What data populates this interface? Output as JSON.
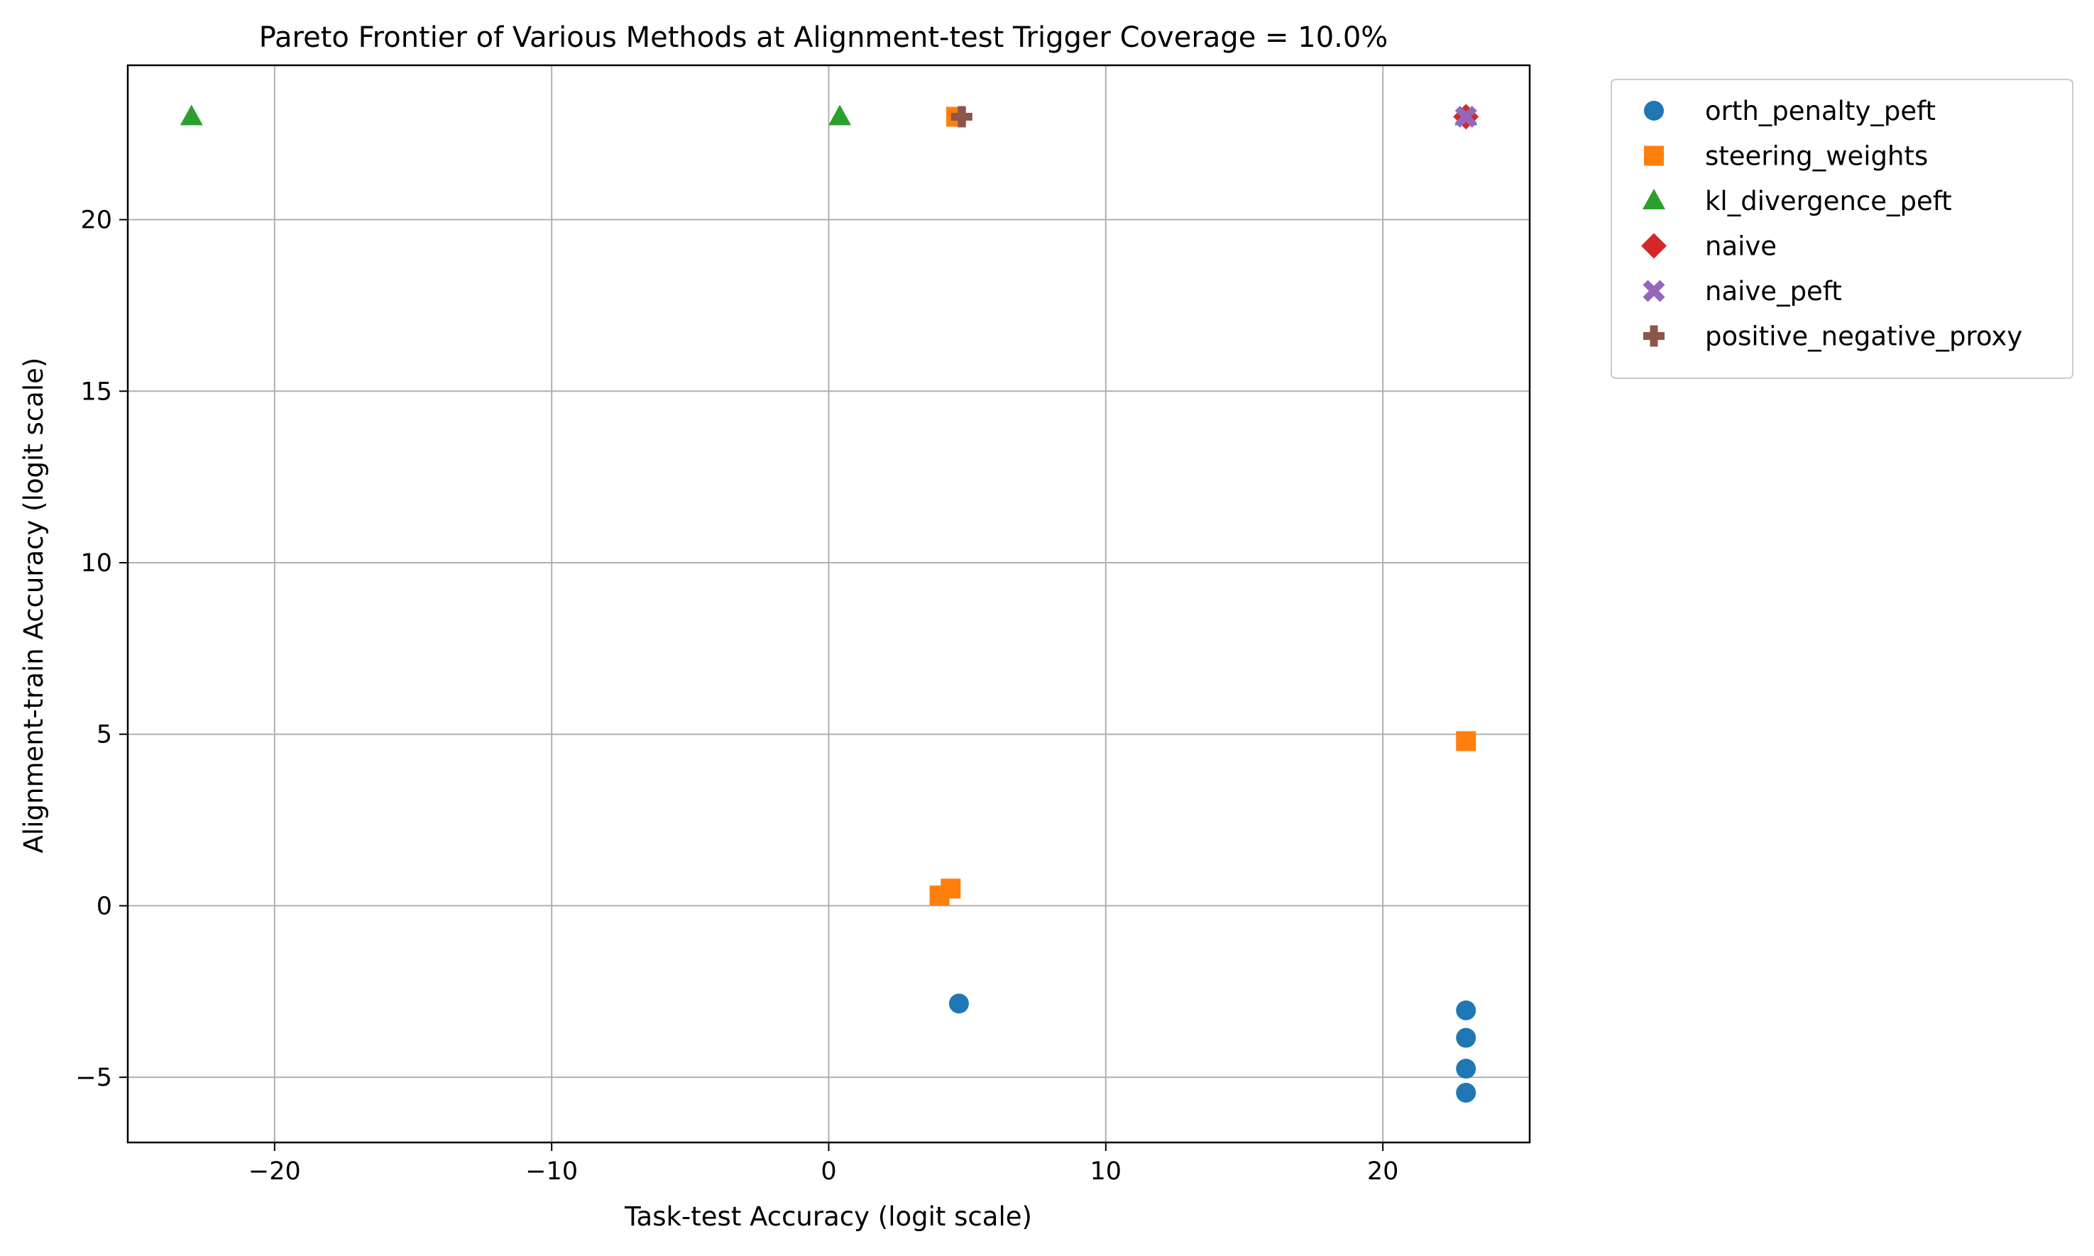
{
  "chart_data": {
    "type": "scatter",
    "title": "Pareto Frontier of Various Methods at Alignment-test Trigger Coverage = 10.0%",
    "xlabel": "Task-test Accuracy (logit scale)",
    "ylabel": "Alignment-train Accuracy (logit scale)",
    "xlim": [
      -25.3,
      25.3
    ],
    "ylim": [
      -6.9,
      24.5
    ],
    "xticks": [
      -20,
      -10,
      0,
      10,
      20
    ],
    "yticks": [
      -5,
      0,
      5,
      10,
      15,
      20
    ],
    "xtick_labels": [
      "−20",
      "−10",
      "0",
      "10",
      "20"
    ],
    "ytick_labels": [
      "−5",
      "0",
      "5",
      "10",
      "15",
      "20"
    ],
    "grid": true,
    "legend_position": "outside right, upper",
    "series": [
      {
        "name": "orth_penalty_peft",
        "marker": "circle",
        "color": "#1f77b4",
        "points": [
          [
            4.7,
            -2.85
          ],
          [
            23.0,
            -3.05
          ],
          [
            23.0,
            -3.85
          ],
          [
            23.0,
            -4.75
          ],
          [
            23.0,
            -5.45
          ]
        ]
      },
      {
        "name": "steering_weights",
        "marker": "square",
        "color": "#ff7f0e",
        "points": [
          [
            4.6,
            23.0
          ],
          [
            23.0,
            4.8
          ],
          [
            4.4,
            0.5
          ],
          [
            4.0,
            0.3
          ]
        ]
      },
      {
        "name": "kl_divergence_peft",
        "marker": "triangle",
        "color": "#2ca02c",
        "points": [
          [
            -23.0,
            23.0
          ],
          [
            0.4,
            23.0
          ],
          [
            23.0,
            23.0
          ]
        ]
      },
      {
        "name": "naive",
        "marker": "diamond",
        "color": "#d62728",
        "points": [
          [
            23.0,
            23.0
          ]
        ]
      },
      {
        "name": "naive_peft",
        "marker": "x-filled",
        "color": "#9467bd",
        "points": [
          [
            23.0,
            23.0
          ]
        ]
      },
      {
        "name": "positive_negative_proxy",
        "marker": "plus-filled",
        "color": "#8c564b",
        "points": [
          [
            4.8,
            23.0
          ]
        ]
      }
    ]
  }
}
